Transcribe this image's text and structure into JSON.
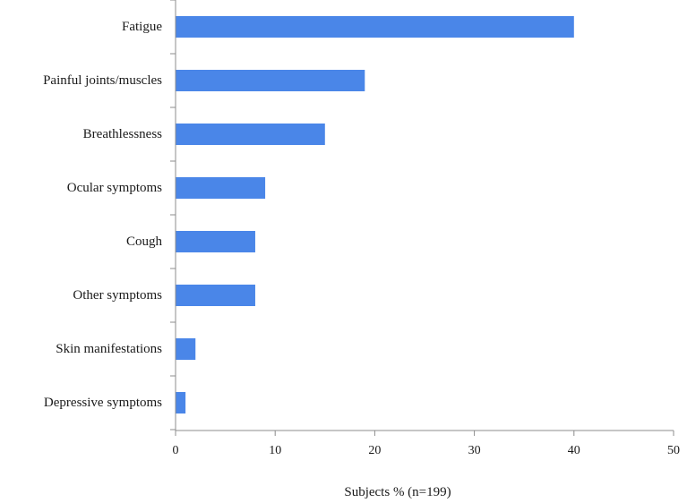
{
  "chart_data": {
    "type": "bar",
    "orientation": "horizontal",
    "categories": [
      "Fatigue",
      "Painful joints/muscles",
      "Breathlessness",
      "Ocular symptoms",
      "Cough",
      "Other symptoms",
      "Skin manifestations",
      "Depressive symptoms"
    ],
    "values": [
      40,
      19,
      15,
      9,
      8,
      8,
      2,
      1
    ],
    "xlabel": "Subjects % (n=199)",
    "ylabel": "",
    "title": "",
    "xlim": [
      0,
      50
    ],
    "xticks": [
      "0",
      "10",
      "20",
      "30",
      "40",
      "50"
    ],
    "grid": false,
    "legend": "none",
    "bar_color": "#4a86e8"
  }
}
